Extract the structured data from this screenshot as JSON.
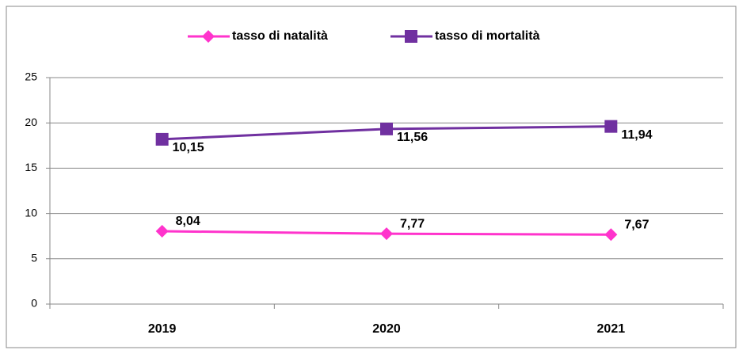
{
  "chart_data": {
    "type": "line",
    "stacked": true,
    "categories": [
      "2019",
      "2020",
      "2021"
    ],
    "series": [
      {
        "name": "tasso di natalità",
        "color": "#ff33cc",
        "marker": "diamond",
        "values": [
          8.04,
          7.77,
          7.67
        ],
        "value_labels": [
          "8,04",
          "7,77",
          "7,67"
        ]
      },
      {
        "name": "tasso di mortalità",
        "color": "#7030a0",
        "marker": "square",
        "values": [
          10.15,
          11.56,
          11.94
        ],
        "value_labels": [
          "10,15",
          "11,56",
          "11,94"
        ]
      }
    ],
    "ylim": [
      0,
      25
    ],
    "yticks": [
      0,
      5,
      10,
      15,
      20,
      25
    ],
    "grid": true,
    "legend": "top"
  }
}
